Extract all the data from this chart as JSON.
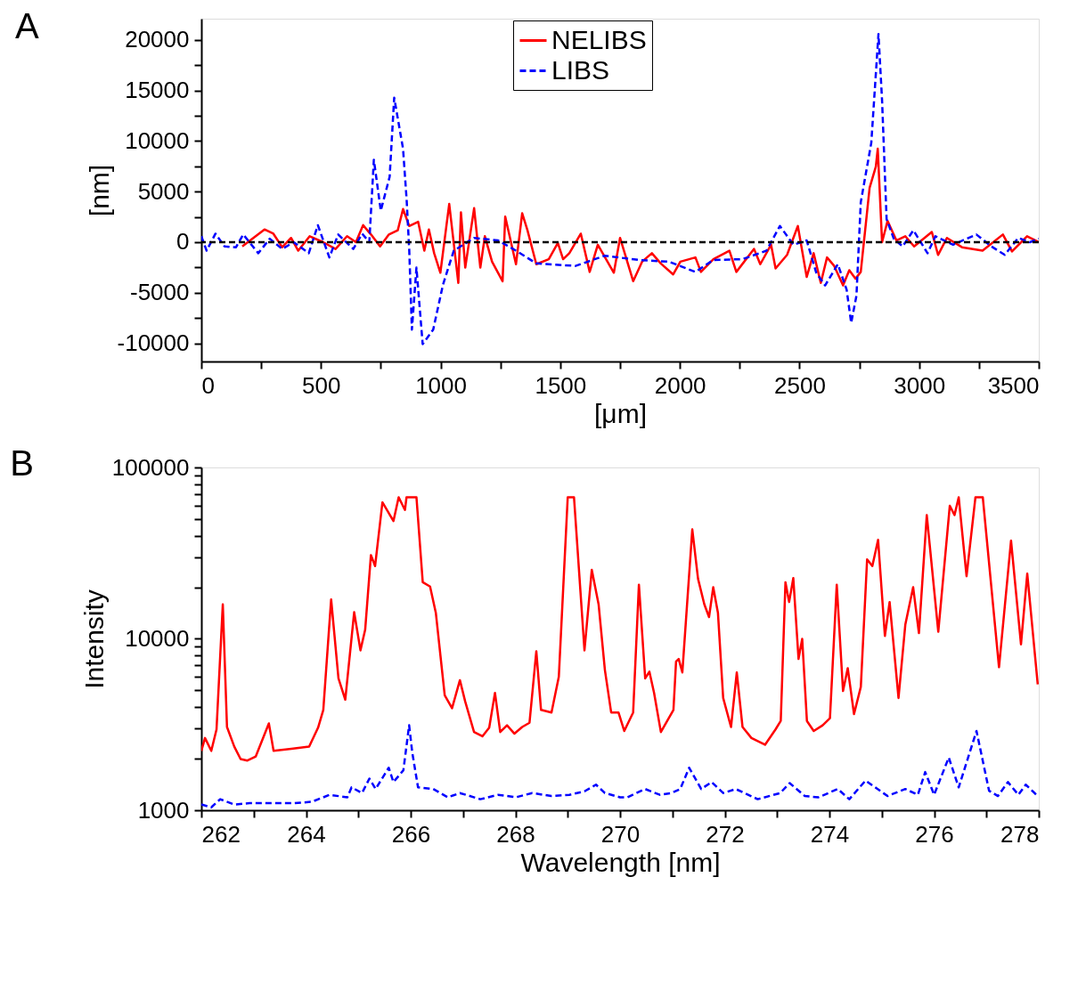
{
  "chart_data": [
    {
      "type": "line",
      "title": "A",
      "xlabel": "[μm]",
      "ylabel": "[nm]",
      "legend": "top",
      "grid": false,
      "marker": "none",
      "xlim": [
        0,
        3500
      ],
      "ylim": [
        -11800,
        22100
      ],
      "xticks": [
        0,
        {
          "value": 250,
          "label": null
        },
        500,
        {
          "value": 750,
          "label": null
        },
        1000,
        {
          "value": 1250,
          "label": null
        },
        1500,
        {
          "value": 1750,
          "label": null
        },
        2000,
        {
          "value": 2250,
          "label": null
        },
        2500,
        {
          "value": 2750,
          "label": null
        },
        3000,
        {
          "value": 3250,
          "label": null
        },
        3500
      ],
      "yticks": [
        -10000,
        {
          "value": -7500,
          "label": null
        },
        -5000,
        {
          "value": -2500,
          "label": null
        },
        0,
        {
          "value": 2500,
          "label": null
        },
        5000,
        {
          "value": 7500,
          "label": null
        },
        10000,
        {
          "value": 12500,
          "label": null
        },
        15000,
        {
          "value": 17500,
          "label": null
        },
        20000
      ],
      "ref_lines": [
        {
          "axis": "y",
          "value": 0,
          "label": null,
          "color": "#000000",
          "line_style": "dashed"
        }
      ],
      "series": [
        {
          "name": "NELIBS",
          "color": "#ff0000",
          "line_style": "solid",
          "x": [
            171,
            264,
            301,
            338,
            375,
            405,
            453,
            509,
            561,
            609,
            646,
            676,
            709,
            747,
            784,
            821,
            843,
            869,
            906,
            932,
            951,
            973,
            999,
            1036,
            1074,
            1085,
            1103,
            1140,
            1166,
            1185,
            1215,
            1259,
            1270,
            1315,
            1341,
            1363,
            1400,
            1452,
            1490,
            1512,
            1538,
            1586,
            1623,
            1657,
            1724,
            1750,
            1805,
            1842,
            1883,
            1920,
            1972,
            2002,
            2065,
            2088,
            2140,
            2207,
            2236,
            2310,
            2336,
            2381,
            2400,
            2448,
            2493,
            2530,
            2559,
            2589,
            2615,
            2645,
            2682,
            2708,
            2734,
            2756,
            2793,
            2819,
            2827,
            2845,
            2868,
            2905,
            2942,
            2979,
            3053,
            3079,
            3116,
            3179,
            3265,
            3350,
            3388,
            3451,
            3500
          ],
          "values": [
            -420,
            1260,
            840,
            -500,
            420,
            -840,
            590,
            0,
            -670,
            590,
            0,
            1680,
            760,
            -420,
            760,
            1180,
            3280,
            1600,
            2020,
            -840,
            1260,
            -1090,
            -3020,
            3780,
            -4030,
            2940,
            -2520,
            3360,
            -2520,
            590,
            -1930,
            -3860,
            2520,
            -2180,
            2860,
            1180,
            -2180,
            -1680,
            -80,
            -1680,
            -1090,
            840,
            -2940,
            -250,
            -3020,
            420,
            -3860,
            -1930,
            -1090,
            -2100,
            -3190,
            -1930,
            -1510,
            -2940,
            -1680,
            -840,
            -2940,
            -670,
            -2180,
            -250,
            -2600,
            -1260,
            1600,
            -3440,
            -1090,
            -4030,
            -1510,
            -2350,
            -4280,
            -2770,
            -3610,
            -2940,
            5380,
            7480,
            9240,
            0,
            2100,
            170,
            590,
            -420,
            1010,
            -1260,
            420,
            -500,
            -840,
            760,
            -920,
            590,
            0
          ]
        },
        {
          "name": "LIBS",
          "color": "#0000ff",
          "line_style": "dashed",
          "x": [
            0,
            22,
            59,
            97,
            145,
            175,
            238,
            286,
            338,
            386,
            449,
            487,
            535,
            572,
            635,
            672,
            702,
            721,
            750,
            787,
            806,
            843,
            858,
            869,
            880,
            899,
            925,
            969,
            1010,
            1055,
            1140,
            1240,
            1315,
            1400,
            1564,
            1686,
            1828,
            1954,
            2065,
            2140,
            2262,
            2362,
            2418,
            2474,
            2530,
            2570,
            2607,
            2660,
            2697,
            2716,
            2738,
            2756,
            2800,
            2830,
            2845,
            2864,
            2894,
            2931,
            2976,
            3035,
            3068,
            3142,
            3239,
            3302,
            3358,
            3414,
            3463,
            3500
          ],
          "values": [
            590,
            -840,
            840,
            -420,
            -500,
            760,
            -1090,
            340,
            -670,
            0,
            -1090,
            1680,
            -1510,
            760,
            -670,
            840,
            0,
            8150,
            3110,
            6470,
            14290,
            9240,
            4200,
            -840,
            -8650,
            -2520,
            -10080,
            -8650,
            -4200,
            -840,
            420,
            170,
            -840,
            -2100,
            -2350,
            -1340,
            -1760,
            -1930,
            -2940,
            -1760,
            -1680,
            -840,
            1600,
            -250,
            170,
            -3020,
            -4280,
            -2180,
            -4700,
            -7980,
            -5290,
            3950,
            9830,
            20590,
            14030,
            2270,
            340,
            -420,
            1180,
            -1090,
            590,
            -250,
            760,
            -420,
            -1260,
            420,
            0,
            340
          ]
        }
      ]
    },
    {
      "type": "line",
      "title": "B",
      "xlabel": "Wavelength [nm]",
      "ylabel": "Intensity",
      "legend": false,
      "grid": false,
      "marker": "none",
      "log": "y",
      "xlim": [
        262,
        278
      ],
      "ylim": [
        1000,
        100000
      ],
      "xticks": [
        262,
        {
          "value": 263,
          "label": null
        },
        264,
        {
          "value": 265,
          "label": null
        },
        266,
        {
          "value": 267,
          "label": null
        },
        268,
        {
          "value": 269,
          "label": null
        },
        270,
        {
          "value": 271,
          "label": null
        },
        272,
        {
          "value": 273,
          "label": null
        },
        274,
        {
          "value": 275,
          "label": null
        },
        276,
        {
          "value": 277,
          "label": null
        },
        278
      ],
      "yticks": [
        1000,
        {
          "value": 2000,
          "label": null
        },
        {
          "value": 3000,
          "label": null
        },
        {
          "value": 4000,
          "label": null
        },
        {
          "value": 5000,
          "label": null
        },
        {
          "value": 6000,
          "label": null
        },
        {
          "value": 7000,
          "label": null
        },
        {
          "value": 8000,
          "label": null
        },
        {
          "value": 9000,
          "label": null
        },
        10000,
        {
          "value": 20000,
          "label": null
        },
        {
          "value": 30000,
          "label": null
        },
        {
          "value": 40000,
          "label": null
        },
        {
          "value": 50000,
          "label": null
        },
        {
          "value": 60000,
          "label": null
        },
        {
          "value": 70000,
          "label": null
        },
        {
          "value": 80000,
          "label": null
        },
        {
          "value": 90000,
          "label": null
        },
        100000
      ],
      "series": [
        {
          "color": "#ff0000",
          "line_style": "solid",
          "x": [
            262.0,
            262.07,
            262.19,
            262.29,
            262.41,
            262.49,
            262.63,
            262.75,
            262.88,
            263.04,
            263.29,
            263.38,
            263.72,
            264.06,
            264.23,
            264.33,
            264.48,
            264.62,
            264.75,
            264.92,
            265.04,
            265.13,
            265.24,
            265.32,
            265.46,
            265.67,
            265.77,
            265.89,
            265.92,
            266.11,
            266.23,
            266.37,
            266.48,
            266.65,
            266.79,
            266.94,
            267.04,
            267.21,
            267.37,
            267.5,
            267.61,
            267.71,
            267.84,
            267.98,
            268.13,
            268.27,
            268.4,
            268.49,
            268.69,
            268.83,
            269.0,
            269.12,
            269.32,
            269.46,
            269.59,
            269.71,
            269.83,
            269.97,
            270.08,
            270.25,
            270.36,
            270.48,
            270.56,
            270.65,
            270.78,
            270.93,
            271.02,
            271.07,
            271.12,
            271.19,
            271.38,
            271.49,
            271.61,
            271.7,
            271.78,
            271.87,
            271.97,
            272.12,
            272.23,
            272.34,
            272.51,
            272.77,
            272.97,
            273.07,
            273.16,
            273.23,
            273.31,
            273.41,
            273.48,
            273.57,
            273.7,
            273.87,
            274.01,
            274.14,
            274.26,
            274.35,
            274.47,
            274.6,
            274.72,
            274.82,
            274.93,
            275.06,
            275.15,
            275.32,
            275.45,
            275.6,
            275.71,
            275.86,
            276.08,
            276.3,
            276.39,
            276.47,
            276.62,
            276.79,
            276.93,
            277.24,
            277.47,
            277.66,
            277.78,
            277.98
          ],
          "values": [
            2220,
            2640,
            2220,
            2960,
            15900,
            3060,
            2350,
            1990,
            1950,
            2060,
            3210,
            2220,
            2280,
            2350,
            3030,
            3850,
            17000,
            5880,
            4420,
            14300,
            8570,
            11300,
            30800,
            26600,
            62600,
            48700,
            67000,
            56500,
            67000,
            67000,
            21400,
            20200,
            14200,
            4680,
            3940,
            5740,
            4320,
            2860,
            2700,
            3030,
            4840,
            2860,
            3130,
            2800,
            3060,
            3240,
            8470,
            3850,
            3720,
            6010,
            67000,
            67000,
            8570,
            25300,
            15900,
            6590,
            3720,
            3720,
            2900,
            3720,
            20700,
            5880,
            6440,
            4840,
            2860,
            3440,
            3850,
            7380,
            7630,
            6370,
            43500,
            22400,
            15900,
            13400,
            20000,
            14200,
            4520,
            3060,
            6370,
            3060,
            2640,
            2410,
            2960,
            3320,
            21400,
            16400,
            22600,
            7630,
            10000,
            3320,
            2900,
            3130,
            3440,
            20700,
            4960,
            6740,
            3640,
            5250,
            29100,
            26600,
            37800,
            10400,
            16400,
            4520,
            12100,
            20000,
            10800,
            52700,
            11000,
            59800,
            52700,
            67000,
            23200,
            67000,
            67000,
            6830,
            37400,
            9290,
            24000,
            5420
          ]
        },
        {
          "color": "#0000ff",
          "line_style": "dashed",
          "x": [
            262.0,
            262.19,
            262.36,
            262.63,
            262.92,
            263.26,
            263.77,
            264.11,
            264.45,
            264.79,
            264.87,
            265.07,
            265.21,
            265.33,
            265.58,
            265.67,
            265.86,
            265.97,
            266.03,
            266.14,
            266.43,
            266.71,
            266.94,
            267.33,
            267.67,
            268.01,
            268.32,
            268.69,
            269.03,
            269.32,
            269.54,
            269.71,
            270.0,
            270.14,
            270.48,
            270.76,
            270.98,
            271.15,
            271.32,
            271.55,
            271.75,
            271.97,
            272.21,
            272.63,
            273.06,
            273.24,
            273.53,
            273.79,
            274.16,
            274.38,
            274.69,
            275.11,
            275.45,
            275.69,
            275.83,
            276.0,
            276.28,
            276.47,
            276.81,
            277.05,
            277.22,
            277.41,
            277.61,
            277.75,
            277.98
          ],
          "values": [
            1080,
            1040,
            1160,
            1080,
            1100,
            1100,
            1100,
            1120,
            1230,
            1190,
            1360,
            1260,
            1530,
            1330,
            1770,
            1460,
            1710,
            3130,
            2170,
            1360,
            1330,
            1190,
            1260,
            1160,
            1230,
            1190,
            1260,
            1210,
            1230,
            1290,
            1410,
            1260,
            1190,
            1190,
            1330,
            1230,
            1260,
            1330,
            1770,
            1330,
            1460,
            1260,
            1330,
            1160,
            1260,
            1440,
            1210,
            1190,
            1330,
            1160,
            1490,
            1210,
            1330,
            1230,
            1670,
            1230,
            2030,
            1360,
            2900,
            1300,
            1210,
            1460,
            1230,
            1410,
            1210
          ]
        }
      ]
    }
  ]
}
